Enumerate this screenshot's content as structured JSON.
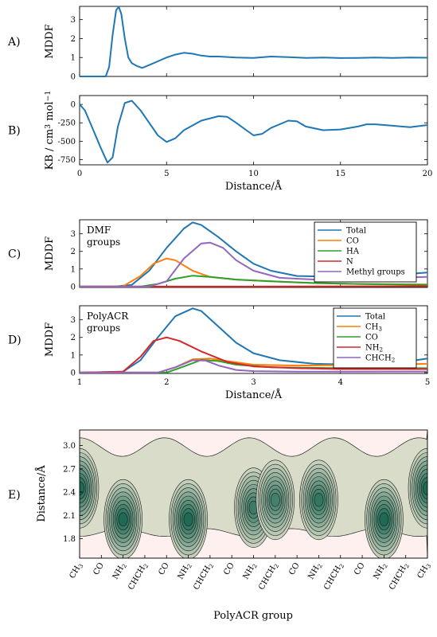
{
  "chart_data": [
    {
      "panel": "A)",
      "type": "line",
      "ylabel": "MDDF",
      "xlim": [
        0,
        20
      ],
      "ylim": [
        0,
        3.7
      ],
      "yticks": [
        0,
        1,
        2,
        3
      ],
      "series": [
        {
          "color": "#1f77b4",
          "x": [
            0,
            1,
            1.3,
            1.5,
            1.7,
            1.9,
            2.1,
            2.25,
            2.4,
            2.6,
            2.8,
            3.0,
            3.3,
            3.6,
            4.0,
            4.5,
            5.0,
            5.5,
            6.0,
            6.5,
            7.0,
            7.5,
            8.0,
            9.0,
            10.0,
            11.0,
            12.0,
            13.0,
            14.0,
            15.0,
            16.0,
            17.0,
            18.0,
            19.0,
            20.0
          ],
          "y": [
            0,
            0,
            0,
            0,
            0.5,
            2.2,
            3.5,
            3.68,
            3.3,
            2.0,
            1.0,
            0.7,
            0.55,
            0.45,
            0.6,
            0.8,
            1.0,
            1.15,
            1.25,
            1.2,
            1.1,
            1.05,
            1.05,
            1.0,
            0.98,
            1.05,
            1.02,
            0.98,
            1.0,
            0.97,
            0.98,
            1.0,
            0.98,
            1.0,
            0.99
          ]
        }
      ]
    },
    {
      "panel": "B)",
      "type": "line",
      "ylabel": "KB / cm³ mol⁻¹",
      "xlabel": "Distance/Å",
      "xlim": [
        0,
        20
      ],
      "xticks": [
        0,
        5,
        10,
        15,
        20
      ],
      "ylim": [
        -820,
        120
      ],
      "yticks": [
        0,
        -250,
        -500,
        -750
      ],
      "series": [
        {
          "color": "#1f77b4",
          "x": [
            0,
            0.3,
            0.7,
            1.2,
            1.6,
            1.9,
            2.2,
            2.6,
            3.0,
            3.5,
            4.0,
            4.5,
            5.0,
            5.5,
            6.0,
            7.0,
            8.0,
            8.5,
            9.0,
            10.0,
            10.5,
            11.0,
            12.0,
            12.5,
            13.0,
            14.0,
            15.0,
            16.0,
            16.5,
            17.0,
            18.0,
            19.0,
            20.0
          ],
          "y": [
            0,
            -80,
            -300,
            -580,
            -790,
            -720,
            -300,
            20,
            50,
            -80,
            -250,
            -420,
            -510,
            -460,
            -350,
            -220,
            -160,
            -170,
            -250,
            -420,
            -400,
            -320,
            -220,
            -230,
            -300,
            -350,
            -340,
            -300,
            -270,
            -270,
            -290,
            -310,
            -280
          ]
        }
      ]
    },
    {
      "panel": "C)",
      "type": "line",
      "annotation": [
        "DMF",
        "groups"
      ],
      "ylabel": "MDDF",
      "xlim": [
        1,
        5
      ],
      "ylim": [
        -0.05,
        3.8
      ],
      "yticks": [
        0,
        1,
        2,
        3
      ],
      "legend_position": "top-right",
      "series": [
        {
          "name": "Total",
          "color": "#1f77b4",
          "x": [
            1,
            1.4,
            1.6,
            1.8,
            2.0,
            2.2,
            2.3,
            2.4,
            2.6,
            2.8,
            3.0,
            3.2,
            3.5,
            4.0,
            4.5,
            5.0
          ],
          "y": [
            0,
            0,
            0.1,
            0.9,
            2.2,
            3.3,
            3.65,
            3.5,
            2.8,
            2.0,
            1.3,
            0.9,
            0.6,
            0.55,
            0.6,
            0.8
          ]
        },
        {
          "name": "CO",
          "color": "#ff7f0e",
          "x": [
            1,
            1.5,
            1.7,
            1.85,
            2.0,
            2.1,
            2.3,
            2.5,
            2.8,
            3.2,
            3.7,
            4.2,
            5.0
          ],
          "y": [
            0,
            0.02,
            0.6,
            1.3,
            1.6,
            1.5,
            0.9,
            0.55,
            0.4,
            0.3,
            0.2,
            0.15,
            0.12
          ]
        },
        {
          "name": "HA",
          "color": "#2ca02c",
          "x": [
            1,
            1.7,
            1.9,
            2.1,
            2.3,
            2.5,
            2.8,
            3.2,
            3.7,
            4.2,
            5.0
          ],
          "y": [
            0,
            0,
            0.15,
            0.45,
            0.62,
            0.55,
            0.4,
            0.3,
            0.2,
            0.15,
            0.1
          ]
        },
        {
          "name": "N",
          "color": "#d62728",
          "x": [
            1,
            3,
            5
          ],
          "y": [
            0,
            0,
            0.02
          ]
        },
        {
          "name": "Methyl groups",
          "color": "#9467bd",
          "x": [
            1,
            1.8,
            2.0,
            2.2,
            2.4,
            2.5,
            2.65,
            2.8,
            3.0,
            3.3,
            3.7,
            4.2,
            5.0
          ],
          "y": [
            0,
            0,
            0.3,
            1.6,
            2.45,
            2.5,
            2.2,
            1.5,
            0.9,
            0.5,
            0.4,
            0.45,
            0.55
          ]
        }
      ]
    },
    {
      "panel": "D)",
      "type": "line",
      "annotation": [
        "PolyACR",
        "groups"
      ],
      "ylabel": "MDDF",
      "xlabel": "Distance/Å",
      "xlim": [
        1,
        5
      ],
      "xticks": [
        1,
        2,
        3,
        4,
        5
      ],
      "ylim": [
        -0.05,
        3.8
      ],
      "yticks": [
        0,
        1,
        2,
        3
      ],
      "legend_position": "top-right",
      "series": [
        {
          "name": "Total",
          "color": "#1f77b4",
          "x": [
            1,
            1.5,
            1.7,
            1.9,
            2.1,
            2.3,
            2.4,
            2.6,
            2.8,
            3.0,
            3.3,
            3.7,
            4.2,
            4.6,
            5.0
          ],
          "y": [
            0,
            0.05,
            0.7,
            2.0,
            3.2,
            3.65,
            3.5,
            2.6,
            1.7,
            1.1,
            0.7,
            0.5,
            0.45,
            0.5,
            0.8
          ]
        },
        {
          "name": "CH₃",
          "color": "#ff7f0e",
          "x": [
            1,
            1.9,
            2.1,
            2.3,
            2.5,
            2.7,
            3.0,
            3.5,
            4.0,
            4.5,
            5.0
          ],
          "y": [
            0,
            0,
            0.3,
            0.75,
            0.8,
            0.65,
            0.45,
            0.4,
            0.42,
            0.45,
            0.5
          ]
        },
        {
          "name": "CO",
          "color": "#2ca02c",
          "x": [
            1,
            2.0,
            2.2,
            2.4,
            2.6,
            2.8,
            3.2,
            4.0,
            5.0
          ],
          "y": [
            0,
            0,
            0.35,
            0.72,
            0.65,
            0.45,
            0.3,
            0.25,
            0.25
          ]
        },
        {
          "name": "NH₂",
          "color": "#d62728",
          "x": [
            1,
            1.5,
            1.7,
            1.85,
            2.0,
            2.15,
            2.4,
            2.7,
            3.0,
            3.5,
            4.0,
            5.0
          ],
          "y": [
            0,
            0.05,
            0.9,
            1.8,
            2.0,
            1.8,
            1.2,
            0.6,
            0.35,
            0.25,
            0.2,
            0.2
          ]
        },
        {
          "name": "CHCH₂",
          "color": "#9467bd",
          "x": [
            1,
            1.9,
            2.1,
            2.3,
            2.45,
            2.6,
            2.8,
            3.0,
            3.5,
            4.0,
            5.0
          ],
          "y": [
            0,
            0,
            0.3,
            0.7,
            0.68,
            0.4,
            0.15,
            0.08,
            0.05,
            0.05,
            0.06
          ]
        }
      ]
    },
    {
      "panel": "E)",
      "type": "heatmap",
      "ylabel": "Distance/Å",
      "xlabel": "PolyACR group",
      "ylim": [
        1.55,
        3.2
      ],
      "yticks": [
        1.8,
        2.1,
        2.4,
        2.7,
        3.0
      ],
      "categories": [
        "CH₃",
        "CO",
        "NH₂",
        "CHCH₂",
        "CO",
        "NH₂",
        "CHCH₂",
        "CO",
        "NH₂",
        "CHCH₂",
        "CO",
        "NH₂",
        "CHCH₂",
        "CO",
        "NH₂",
        "CHCH₂",
        "CH₃"
      ],
      "hotspots": [
        {
          "group_index": 0,
          "distance": 2.45,
          "intensity": 1.0
        },
        {
          "group_index": 2,
          "distance": 2.05,
          "intensity": 1.0
        },
        {
          "group_index": 5,
          "distance": 2.05,
          "intensity": 1.0
        },
        {
          "group_index": 8,
          "distance": 2.2,
          "intensity": 0.85
        },
        {
          "group_index": 9,
          "distance": 2.3,
          "intensity": 0.8
        },
        {
          "group_index": 11,
          "distance": 2.3,
          "intensity": 0.9
        },
        {
          "group_index": 14,
          "distance": 2.05,
          "intensity": 1.0
        },
        {
          "group_index": 16,
          "distance": 2.45,
          "intensity": 1.0
        }
      ],
      "colors": {
        "background": "#fdf0ee",
        "low": "#d9dcc8",
        "high": "#1f6a55"
      }
    }
  ]
}
